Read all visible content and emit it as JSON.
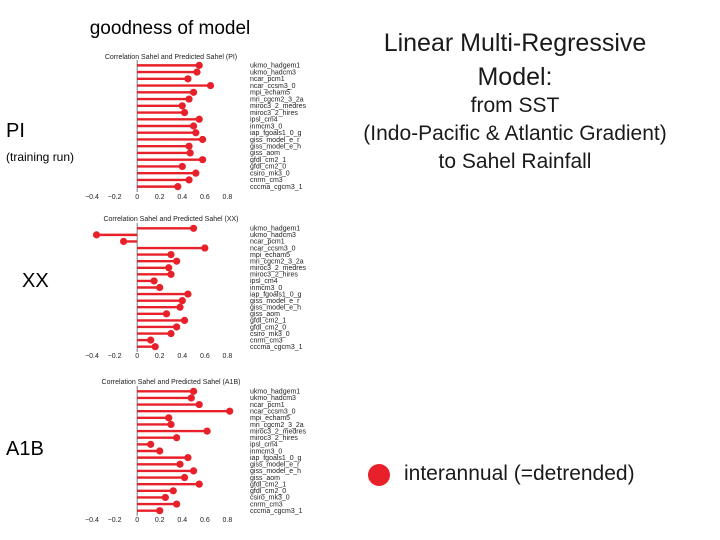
{
  "header": {
    "left_title": "goodness of model",
    "right_title_line1": "Linear Multi-Regressive",
    "right_title_line2": "Model:",
    "subtitle_line1": "from SST",
    "subtitle_line2": "(Indo-Pacific & Atlantic Gradient)",
    "subtitle_line3": "to Sahel Rainfall"
  },
  "rows": {
    "pi": "PI",
    "pi_note": "(training run)",
    "xx": "XX",
    "a1b": "A1B"
  },
  "legend": {
    "label": "interannual (=detrended)",
    "color": "#e8202a"
  },
  "chart_data": [
    {
      "type": "bar",
      "orientation": "horizontal",
      "title": "Correlation Sahel and Predicted Sahel (PI)",
      "xlim": [
        -0.4,
        1.0
      ],
      "xticks": [
        "−0.4",
        "−0.2",
        "0",
        "0.2",
        "0.4",
        "0.6",
        "0.8"
      ],
      "categories": [
        "ukmo_hadgem1",
        "ukmo_hadcm3",
        "ncar_pcm1",
        "ncar_ccsm3_0",
        "mpi_echam5",
        "mri_cgcm2_3_2a",
        "miroc3_2_medres",
        "miroc3_2_hires",
        "ipsl_cm4",
        "inmcm3_0",
        "iap_fgoals1_0_g",
        "giss_model_e_r",
        "giss_model_e_h",
        "giss_aom",
        "gfdl_cm2_1",
        "gfdl_cm2_0",
        "csiro_mk3_0",
        "cnrm_cm3",
        "cccma_cgcm3_1"
      ],
      "series": [
        {
          "values": [
            0.55,
            0.53,
            0.45,
            0.65,
            0.5,
            0.46,
            0.4,
            0.42,
            0.55,
            0.5,
            0.52,
            0.58,
            0.46,
            0.47,
            0.58,
            0.4,
            0.52,
            0.46,
            0.36
          ]
        }
      ]
    },
    {
      "type": "bar",
      "orientation": "horizontal",
      "title": "Correlation Sahel and Predicted Sahel (XX)",
      "xlim": [
        -0.4,
        1.0
      ],
      "xticks": [
        "−0.4",
        "−0.2",
        "0",
        "0.2",
        "0.4",
        "0.6",
        "0.8"
      ],
      "categories": [
        "ukmo_hadgem1",
        "ukmo_hadcm3",
        "ncar_pcm1",
        "ncar_ccsm3_0",
        "mpi_echam5",
        "mri_cgcm2_3_2a",
        "miroc3_2_medres",
        "miroc3_2_hires",
        "ipsl_cm4",
        "inmcm3_0",
        "iap_fgoals1_0_g",
        "giss_model_e_r",
        "giss_model_e_h",
        "giss_aom",
        "gfdl_cm2_1",
        "gfdl_cm2_0",
        "csiro_mk3_0",
        "cnrm_cm3",
        "cccma_cgcm3_1"
      ],
      "series": [
        {
          "values": [
            0.5,
            -0.36,
            -0.12,
            0.6,
            0.3,
            0.35,
            0.28,
            0.3,
            0.15,
            0.2,
            0.45,
            0.4,
            0.38,
            0.26,
            0.42,
            0.35,
            0.3,
            0.12,
            0.16
          ]
        }
      ]
    },
    {
      "type": "bar",
      "orientation": "horizontal",
      "title": "Correlation Sahel and Predicted Sahel (A1B)",
      "xlim": [
        -0.4,
        1.0
      ],
      "xticks": [
        "−0.4",
        "−0.2",
        "0",
        "0.2",
        "0.4",
        "0.6",
        "0.8"
      ],
      "categories": [
        "ukmo_hadgem1",
        "ukmo_hadcm3",
        "ncar_pcm1",
        "ncar_ccsm3_0",
        "mpi_echam5",
        "mri_cgcm2_3_2a",
        "miroc3_2_medres",
        "miroc3_2_hires",
        "ipsl_cm4",
        "inmcm3_0",
        "iap_fgoals1_0_g",
        "giss_model_e_r",
        "giss_model_e_h",
        "giss_aom",
        "gfdl_cm2_1",
        "gfdl_cm2_0",
        "csiro_mk3_0",
        "cnrm_cm3",
        "cccma_cgcm3_1"
      ],
      "series": [
        {
          "values": [
            0.5,
            0.48,
            0.55,
            0.82,
            0.28,
            0.3,
            0.62,
            0.35,
            0.12,
            0.2,
            0.45,
            0.38,
            0.5,
            0.42,
            0.55,
            0.32,
            0.25,
            0.35,
            0.2
          ]
        }
      ]
    }
  ]
}
